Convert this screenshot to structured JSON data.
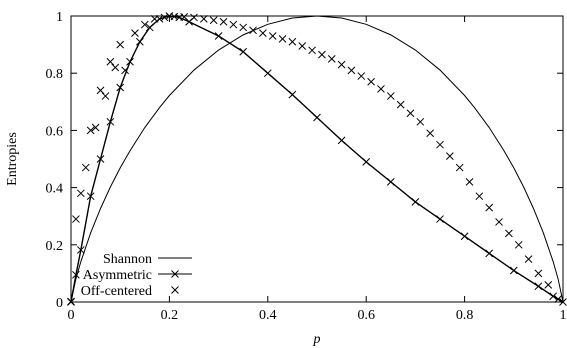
{
  "chart_data": {
    "type": "line",
    "xlabel": "p",
    "ylabel": "Entropies",
    "xlim": [
      0,
      1
    ],
    "ylim": [
      0,
      1
    ],
    "xticks": [
      "0",
      "0.2",
      "0.4",
      "0.6",
      "0.8",
      "1"
    ],
    "yticks": [
      "0",
      "0.2",
      "0.4",
      "0.6",
      "0.8",
      "1"
    ],
    "grid": false,
    "legend_position": "bottom-left",
    "series": [
      {
        "name": "Shannon",
        "style": "line",
        "x": [
          0,
          0.01,
          0.02,
          0.04,
          0.06,
          0.08,
          0.1,
          0.12,
          0.15,
          0.18,
          0.2,
          0.25,
          0.3,
          0.35,
          0.4,
          0.45,
          0.5,
          0.55,
          0.6,
          0.65,
          0.7,
          0.75,
          0.8,
          0.82,
          0.85,
          0.88,
          0.9,
          0.92,
          0.94,
          0.96,
          0.98,
          0.99,
          1
        ],
        "y": [
          0,
          0.081,
          0.141,
          0.242,
          0.327,
          0.402,
          0.469,
          0.529,
          0.61,
          0.68,
          0.722,
          0.811,
          0.881,
          0.934,
          0.971,
          0.993,
          1,
          0.993,
          0.971,
          0.934,
          0.881,
          0.811,
          0.722,
          0.68,
          0.61,
          0.529,
          0.469,
          0.402,
          0.327,
          0.242,
          0.141,
          0.081,
          0
        ]
      },
      {
        "name": "Asymmetric",
        "style": "line-with-x-markers",
        "x": [
          0,
          0.01,
          0.02,
          0.04,
          0.06,
          0.08,
          0.1,
          0.12,
          0.14,
          0.16,
          0.18,
          0.2,
          0.22,
          0.24,
          0.3,
          0.35,
          0.4,
          0.45,
          0.5,
          0.55,
          0.6,
          0.65,
          0.7,
          0.75,
          0.8,
          0.85,
          0.9,
          0.95,
          0.98,
          1
        ],
        "y": [
          0,
          0.095,
          0.182,
          0.37,
          0.5,
          0.63,
          0.75,
          0.84,
          0.91,
          0.96,
          0.99,
          1,
          0.995,
          0.98,
          0.93,
          0.875,
          0.8,
          0.725,
          0.645,
          0.565,
          0.49,
          0.42,
          0.35,
          0.29,
          0.23,
          0.17,
          0.11,
          0.055,
          0.02,
          0
        ]
      },
      {
        "name": "Off-centered",
        "style": "x-markers",
        "x": [
          0,
          0.01,
          0.02,
          0.03,
          0.04,
          0.05,
          0.06,
          0.07,
          0.08,
          0.09,
          0.1,
          0.11,
          0.13,
          0.15,
          0.17,
          0.19,
          0.21,
          0.23,
          0.25,
          0.27,
          0.29,
          0.31,
          0.33,
          0.35,
          0.37,
          0.39,
          0.41,
          0.43,
          0.45,
          0.47,
          0.49,
          0.51,
          0.53,
          0.55,
          0.57,
          0.59,
          0.61,
          0.63,
          0.65,
          0.67,
          0.69,
          0.71,
          0.73,
          0.75,
          0.77,
          0.79,
          0.81,
          0.83,
          0.85,
          0.87,
          0.89,
          0.91,
          0.93,
          0.95,
          0.97,
          0.99
        ],
        "y": [
          0.002,
          0.29,
          0.38,
          0.47,
          0.6,
          0.61,
          0.74,
          0.72,
          0.84,
          0.82,
          0.9,
          0.81,
          0.94,
          0.97,
          0.99,
          0.995,
          0.998,
          0.997,
          0.995,
          0.99,
          0.985,
          0.98,
          0.97,
          0.96,
          0.95,
          0.94,
          0.93,
          0.92,
          0.91,
          0.895,
          0.88,
          0.865,
          0.85,
          0.83,
          0.81,
          0.79,
          0.77,
          0.745,
          0.72,
          0.69,
          0.66,
          0.63,
          0.59,
          0.55,
          0.51,
          0.47,
          0.42,
          0.37,
          0.33,
          0.28,
          0.24,
          0.2,
          0.15,
          0.1,
          0.06,
          0.01
        ]
      }
    ]
  }
}
